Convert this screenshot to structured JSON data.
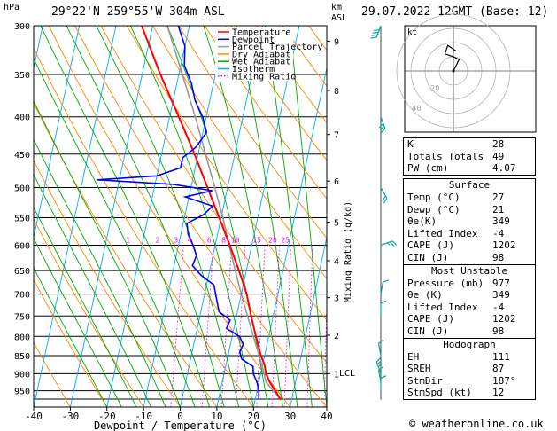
{
  "header": {
    "hpa": "hPa",
    "location": "29°22'N  259°55'W  304m  ASL",
    "km": "km",
    "asl": "ASL",
    "datetime": "29.07.2022  12GMT  (Base: 12)"
  },
  "credit": "© weatheronline.co.uk",
  "colors": {
    "temperature": "#ff0000",
    "dewpoint": "#0000ff",
    "parcel": "#999999",
    "dry_adiabat": "#ff8800",
    "wet_adiabat": "#00aa00",
    "isotherm": "#00aaff",
    "mixing_ratio": "#ff00ff"
  },
  "chart_data": {
    "type": "line",
    "xlabel": "Dewpoint / Temperature (°C)",
    "ylabel": "hPa",
    "ylabel_right": "Mixing Ratio (g/kg)",
    "xlim": [
      -40,
      40
    ],
    "ylim": [
      300,
      1000
    ],
    "x_ticks": [
      -40,
      -30,
      -20,
      -10,
      0,
      10,
      20,
      30,
      40
    ],
    "pressure_ticks": [
      300,
      350,
      400,
      450,
      500,
      550,
      600,
      650,
      700,
      750,
      800,
      850,
      900,
      950
    ],
    "km_ticks": [
      {
        "label": "9",
        "p": 315
      },
      {
        "label": "8",
        "p": 368
      },
      {
        "label": "7",
        "p": 423
      },
      {
        "label": "6",
        "p": 490
      },
      {
        "label": "5",
        "p": 558
      },
      {
        "label": "4",
        "p": 630
      },
      {
        "label": "3",
        "p": 708
      },
      {
        "label": "2",
        "p": 797
      },
      {
        "label": "1",
        "p": 900
      }
    ],
    "lcl": {
      "label": "LCL",
      "p": 897
    },
    "mixing_ratio_labels": [
      {
        "label": "1",
        "w": 1
      },
      {
        "label": "2",
        "w": 2
      },
      {
        "label": "3",
        "w": 3
      },
      {
        "label": "4",
        "w": 4
      },
      {
        "label": "6",
        "w": 6
      },
      {
        "label": "8",
        "w": 8
      },
      {
        "label": "10",
        "w": 10
      },
      {
        "label": "15",
        "w": 15
      },
      {
        "label": "20",
        "w": 20
      },
      {
        "label": "25",
        "w": 25
      }
    ],
    "legend": [
      {
        "name": "Temperature",
        "color": "#ff0000",
        "style": "solid"
      },
      {
        "name": "Dewpoint",
        "color": "#0000ff",
        "style": "solid"
      },
      {
        "name": "Parcel Trajectory",
        "color": "#999999",
        "style": "solid"
      },
      {
        "name": "Dry Adiabat",
        "color": "#ff8800",
        "style": "solid"
      },
      {
        "name": "Wet Adiabat",
        "color": "#00aa00",
        "style": "solid"
      },
      {
        "name": "Isotherm",
        "color": "#00aaff",
        "style": "solid"
      },
      {
        "name": "Mixing Ratio",
        "color": "#ff00ff",
        "style": "dotted"
      }
    ],
    "series": [
      {
        "name": "Temperature",
        "points": [
          [
            977,
            27
          ],
          [
            950,
            25
          ],
          [
            925,
            23
          ],
          [
            900,
            21.5
          ],
          [
            875,
            20.5
          ],
          [
            850,
            19
          ],
          [
            800,
            16.5
          ],
          [
            750,
            14
          ],
          [
            700,
            11.5
          ],
          [
            650,
            8
          ],
          [
            600,
            4
          ],
          [
            550,
            -0.5
          ],
          [
            500,
            -5.5
          ],
          [
            450,
            -11
          ],
          [
            400,
            -17.5
          ],
          [
            350,
            -25
          ],
          [
            300,
            -33
          ]
        ]
      },
      {
        "name": "Dewpoint",
        "points": [
          [
            977,
            21
          ],
          [
            950,
            20.5
          ],
          [
            925,
            19.5
          ],
          [
            900,
            18
          ],
          [
            880,
            17.5
          ],
          [
            860,
            14
          ],
          [
            840,
            13
          ],
          [
            820,
            13.5
          ],
          [
            800,
            12
          ],
          [
            780,
            8
          ],
          [
            760,
            8.5
          ],
          [
            740,
            5
          ],
          [
            720,
            4
          ],
          [
            700,
            3
          ],
          [
            680,
            2
          ],
          [
            660,
            -2
          ],
          [
            640,
            -5
          ],
          [
            620,
            -4.5
          ],
          [
            600,
            -6
          ],
          [
            580,
            -8
          ],
          [
            560,
            -9
          ],
          [
            545,
            -5
          ],
          [
            530,
            -3
          ],
          [
            515,
            -11
          ],
          [
            505,
            -4
          ],
          [
            495,
            -15
          ],
          [
            488,
            -36
          ],
          [
            482,
            -20
          ],
          [
            470,
            -14
          ],
          [
            455,
            -14
          ],
          [
            440,
            -11
          ],
          [
            420,
            -9
          ],
          [
            400,
            -11
          ],
          [
            380,
            -14
          ],
          [
            360,
            -16
          ],
          [
            340,
            -19
          ],
          [
            320,
            -20
          ],
          [
            300,
            -23
          ]
        ]
      },
      {
        "name": "Parcel Trajectory",
        "points": [
          [
            977,
            27
          ],
          [
            950,
            24.5
          ],
          [
            925,
            22
          ],
          [
            897,
            20.8
          ],
          [
            850,
            18.5
          ],
          [
            800,
            15.8
          ],
          [
            750,
            13
          ],
          [
            700,
            10
          ],
          [
            650,
            7
          ],
          [
            600,
            3.8
          ],
          [
            550,
            0.5
          ],
          [
            500,
            -3.5
          ],
          [
            450,
            -8
          ],
          [
            400,
            -13
          ],
          [
            350,
            -19
          ],
          [
            300,
            -26
          ]
        ]
      }
    ],
    "wind_barbs": [
      {
        "p": 300,
        "dir": 20,
        "spd": 40
      },
      {
        "p": 400,
        "dir": 340,
        "spd": 30
      },
      {
        "p": 500,
        "dir": 330,
        "spd": 20
      },
      {
        "p": 600,
        "dir": 250,
        "spd": 15
      },
      {
        "p": 700,
        "dir": 190,
        "spd": 10
      },
      {
        "p": 750,
        "dir": 180,
        "spd": 10
      },
      {
        "p": 850,
        "dir": 170,
        "spd": 10
      },
      {
        "p": 900,
        "dir": 160,
        "spd": 15
      },
      {
        "p": 925,
        "dir": 170,
        "spd": 10
      },
      {
        "p": 950,
        "dir": 180,
        "spd": 10
      }
    ],
    "hodograph": {
      "label": "kt",
      "ring_labels": [
        "20",
        "40"
      ],
      "points": [
        [
          0,
          0
        ],
        [
          2,
          4
        ],
        [
          4,
          8
        ],
        [
          0,
          10
        ],
        [
          -6,
          12
        ],
        [
          -4,
          18
        ],
        [
          2,
          14
        ]
      ]
    }
  },
  "indices": [
    {
      "name": "K",
      "value": "28"
    },
    {
      "name": "Totals Totals",
      "value": "49"
    },
    {
      "name": "PW (cm)",
      "value": "4.07"
    }
  ],
  "surface": {
    "title": "Surface",
    "rows": [
      {
        "name": "Temp (°C)",
        "value": "27"
      },
      {
        "name": "Dewp (°C)",
        "value": "21"
      },
      {
        "name": "θe(K)",
        "value": "349"
      },
      {
        "name": "Lifted Index",
        "value": "-4"
      },
      {
        "name": "CAPE (J)",
        "value": "1202"
      },
      {
        "name": "CIN (J)",
        "value": "98"
      }
    ]
  },
  "most_unstable": {
    "title": "Most Unstable",
    "rows": [
      {
        "name": "Pressure (mb)",
        "value": "977"
      },
      {
        "name": "θe (K)",
        "value": "349"
      },
      {
        "name": "Lifted Index",
        "value": "-4"
      },
      {
        "name": "CAPE (J)",
        "value": "1202"
      },
      {
        "name": "CIN (J)",
        "value": "98"
      }
    ]
  },
  "hodograph_table": {
    "title": "Hodograph",
    "rows": [
      {
        "name": "EH",
        "value": "111"
      },
      {
        "name": "SREH",
        "value": "87"
      },
      {
        "name": "StmDir",
        "value": "187°"
      },
      {
        "name": "StmSpd (kt)",
        "value": "12"
      }
    ]
  }
}
